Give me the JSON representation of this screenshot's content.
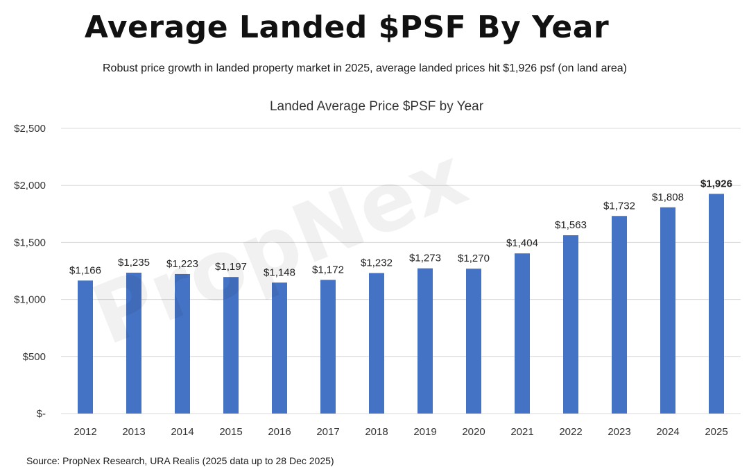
{
  "header": {
    "title": "Average Landed $PSF By Year",
    "subtitle": "Robust price growth in landed property market in 2025, average landed prices hit $1,926 psf (on land area)"
  },
  "watermark": "PropNex",
  "footer": {
    "source": "Source: PropNex Research, URA Realis (2025 data up to 28 Dec 2025)"
  },
  "colors": {
    "bar": "#4472C4",
    "grid": "#d9d9d9",
    "text": "#333333"
  },
  "chart_data": {
    "type": "bar",
    "title": "Landed Average Price $PSF by Year",
    "xlabel": "",
    "ylabel": "",
    "categories": [
      "2012",
      "2013",
      "2014",
      "2015",
      "2016",
      "2017",
      "2018",
      "2019",
      "2020",
      "2021",
      "2022",
      "2023",
      "2024",
      "2025"
    ],
    "values": [
      1166,
      1235,
      1223,
      1197,
      1148,
      1172,
      1232,
      1273,
      1270,
      1404,
      1563,
      1732,
      1808,
      1926
    ],
    "data_labels": [
      "$1,166",
      "$1,235",
      "$1,223",
      "$1,197",
      "$1,148",
      "$1,172",
      "$1,232",
      "$1,273",
      "$1,270",
      "$1,404",
      "$1,563",
      "$1,732",
      "$1,808",
      "$1,926"
    ],
    "highlight_index": 13,
    "ylim": [
      0,
      2500
    ],
    "y_ticks": [
      0,
      500,
      1000,
      1500,
      2000,
      2500
    ],
    "y_tick_labels": [
      "$-",
      "$500",
      "$1,000",
      "$1,500",
      "$2,000",
      "$2,500"
    ],
    "grid": true,
    "legend": "none"
  }
}
